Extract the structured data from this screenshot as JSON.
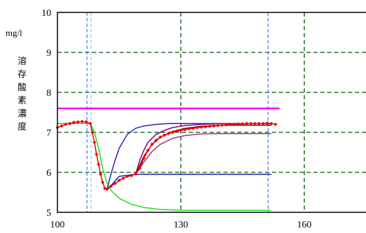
{
  "chart_data": {
    "type": "line",
    "unit_label": "mg/l",
    "ylabel": "溶存酸素濃度",
    "xlim": [
      100,
      175
    ],
    "ylim": [
      5,
      10
    ],
    "xticks": [
      100,
      130,
      160
    ],
    "yticks": [
      5,
      6,
      7,
      8,
      9,
      10
    ],
    "grid": true,
    "vertical_markers": [
      107.2,
      108.2,
      151.2
    ],
    "series": [
      {
        "color": "#ff00ff",
        "x": [
          100,
          154
        ],
        "y": [
          7.6,
          7.6
        ]
      },
      {
        "color": "#22dd22",
        "x": [
          100,
          108,
          109,
          110,
          111,
          112,
          113,
          115,
          118,
          121,
          125,
          130,
          135,
          140,
          145,
          152
        ],
        "y": [
          7.22,
          7.22,
          7.0,
          6.6,
          6.1,
          5.75,
          5.55,
          5.35,
          5.2,
          5.12,
          5.07,
          5.05,
          5.05,
          5.05,
          5.05,
          5.05
        ]
      },
      {
        "color": "#2222cc",
        "x": [
          112,
          112.5,
          113,
          114,
          115,
          117,
          119,
          121,
          124,
          127,
          130,
          135,
          140,
          152
        ],
        "y": [
          5.55,
          5.75,
          5.95,
          6.3,
          6.6,
          6.95,
          7.1,
          7.16,
          7.2,
          7.22,
          7.22,
          7.22,
          7.22,
          7.22
        ]
      },
      {
        "color": "#1a1aa8",
        "x": [
          112,
          115,
          119,
          120,
          125,
          130,
          140,
          152
        ],
        "y": [
          5.55,
          5.9,
          5.95,
          5.95,
          5.95,
          5.95,
          5.95,
          5.95
        ]
      },
      {
        "color": "#800080",
        "x": [
          119,
          120,
          121,
          122,
          124,
          126,
          128,
          131,
          135,
          140,
          145,
          152
        ],
        "y": [
          5.95,
          6.3,
          6.55,
          6.75,
          6.95,
          7.05,
          7.12,
          7.17,
          7.2,
          7.22,
          7.22,
          7.22
        ]
      },
      {
        "color": "#600000",
        "x": [
          119,
          121,
          123,
          125,
          128,
          131,
          135,
          140,
          145,
          152
        ],
        "y": [
          5.95,
          6.4,
          6.7,
          6.88,
          7.02,
          7.1,
          7.15,
          7.18,
          7.18,
          7.18
        ]
      },
      {
        "color": "#993399",
        "x": [
          119,
          121,
          123,
          125,
          128,
          131,
          135,
          140,
          152
        ],
        "y": [
          5.95,
          6.25,
          6.52,
          6.7,
          6.85,
          6.92,
          6.96,
          6.97,
          6.97
        ]
      },
      {
        "color": "#ee0000",
        "marker": "diamond",
        "x": [
          100,
          101,
          102,
          103,
          104,
          105,
          106,
          107,
          108,
          108.5,
          109,
          109.5,
          110,
          110.5,
          111,
          111.5,
          112,
          113,
          114,
          115,
          116,
          117,
          118,
          119,
          120,
          121,
          122,
          123,
          124,
          125,
          126,
          127,
          128,
          129,
          130,
          131,
          132,
          133,
          134,
          135,
          136,
          137,
          138,
          139,
          140,
          141,
          142,
          143,
          144,
          145,
          146,
          147,
          148,
          149,
          150,
          151,
          152,
          153
        ],
        "y": [
          7.12,
          7.16,
          7.2,
          7.22,
          7.25,
          7.26,
          7.27,
          7.26,
          7.22,
          7.0,
          6.75,
          6.45,
          6.2,
          5.95,
          5.75,
          5.6,
          5.58,
          5.65,
          5.72,
          5.8,
          5.85,
          5.9,
          5.92,
          5.96,
          6.1,
          6.35,
          6.55,
          6.7,
          6.8,
          6.88,
          6.93,
          6.97,
          7.0,
          7.03,
          7.05,
          7.07,
          7.09,
          7.1,
          7.12,
          7.13,
          7.14,
          7.15,
          7.16,
          7.17,
          7.18,
          7.19,
          7.2,
          7.2,
          7.21,
          7.21,
          7.22,
          7.22,
          7.22,
          7.22,
          7.22,
          7.23,
          7.22,
          7.2
        ]
      }
    ]
  }
}
